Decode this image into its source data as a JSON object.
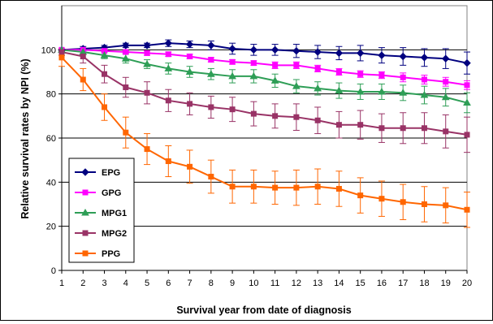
{
  "chart_data": {
    "type": "line",
    "xlabel": "Survival year from date of diagnosis",
    "ylabel": "Relative survival rates by NPI (%)",
    "xlim": [
      1,
      20
    ],
    "ylim": [
      0,
      120
    ],
    "yticks": [
      0,
      20,
      40,
      60,
      80,
      100
    ],
    "x": [
      1,
      2,
      3,
      4,
      5,
      6,
      7,
      8,
      9,
      10,
      11,
      12,
      13,
      14,
      15,
      16,
      17,
      18,
      19,
      20
    ],
    "grid": "horizontal",
    "legend_position": "bottom-left",
    "error_bars": true,
    "series": [
      {
        "name": "EPG",
        "color": "#00007f",
        "marker": "diamond",
        "values": [
          100,
          100.5,
          101,
          102,
          102,
          103,
          102.5,
          102,
          100.5,
          100,
          100,
          99.5,
          99,
          98.5,
          98.5,
          97.5,
          97,
          96.5,
          96,
          94
        ],
        "errors": [
          0.5,
          1,
          1,
          1,
          1,
          1.5,
          1.5,
          2,
          2.5,
          2.5,
          2.5,
          3,
          3,
          3,
          3.5,
          3.5,
          4,
          4,
          4.5,
          5
        ]
      },
      {
        "name": "GPG",
        "color": "#ff00ff",
        "marker": "square",
        "values": [
          100,
          100,
          99.5,
          99,
          98.5,
          98,
          97,
          95.5,
          94.5,
          94,
          93,
          93,
          91.5,
          90,
          89,
          88.5,
          87.5,
          86.5,
          85.5,
          84
        ],
        "errors": [
          0.5,
          0.5,
          0.5,
          0.5,
          1,
          1,
          1,
          1,
          1,
          1,
          1.5,
          1.5,
          1.5,
          1.5,
          1.5,
          1.5,
          2,
          2,
          2,
          2
        ]
      },
      {
        "name": "MPG1",
        "color": "#2e9e56",
        "marker": "triangle",
        "values": [
          100,
          99,
          97.5,
          96,
          93.5,
          91.5,
          90,
          89,
          88,
          88,
          86,
          83.5,
          82.5,
          81.5,
          81,
          81,
          80.5,
          79.5,
          78.5,
          76
        ],
        "errors": [
          0.5,
          1,
          1.5,
          2,
          2,
          2.5,
          2.5,
          2.5,
          3,
          3,
          3,
          3,
          3,
          3.5,
          3.5,
          3.5,
          3.5,
          4,
          4,
          4.5
        ]
      },
      {
        "name": "MPG2",
        "color": "#993366",
        "marker": "square",
        "values": [
          99,
          97,
          89,
          83,
          80.5,
          77,
          75.5,
          74,
          73,
          71,
          70,
          69.5,
          68,
          66,
          66,
          64.5,
          64.5,
          64.5,
          63,
          61.5
        ],
        "errors": [
          1.5,
          3,
          4,
          4.5,
          5,
          5,
          5,
          5,
          5.5,
          5.5,
          5.5,
          6,
          6,
          6,
          6.5,
          6.5,
          7,
          7,
          7.5,
          8
        ]
      },
      {
        "name": "PPG",
        "color": "#ff6600",
        "marker": "square",
        "values": [
          96.5,
          86.5,
          74,
          62.5,
          55,
          49.5,
          47,
          42.5,
          38,
          38,
          37.5,
          37.5,
          38,
          37,
          34,
          32.5,
          31,
          30,
          29.5,
          27.5
        ],
        "errors": [
          4,
          5,
          6,
          7,
          7,
          7,
          7.5,
          7.5,
          7.5,
          7.5,
          7.5,
          8,
          8,
          8,
          8,
          8,
          8,
          8,
          8,
          8
        ]
      }
    ]
  }
}
